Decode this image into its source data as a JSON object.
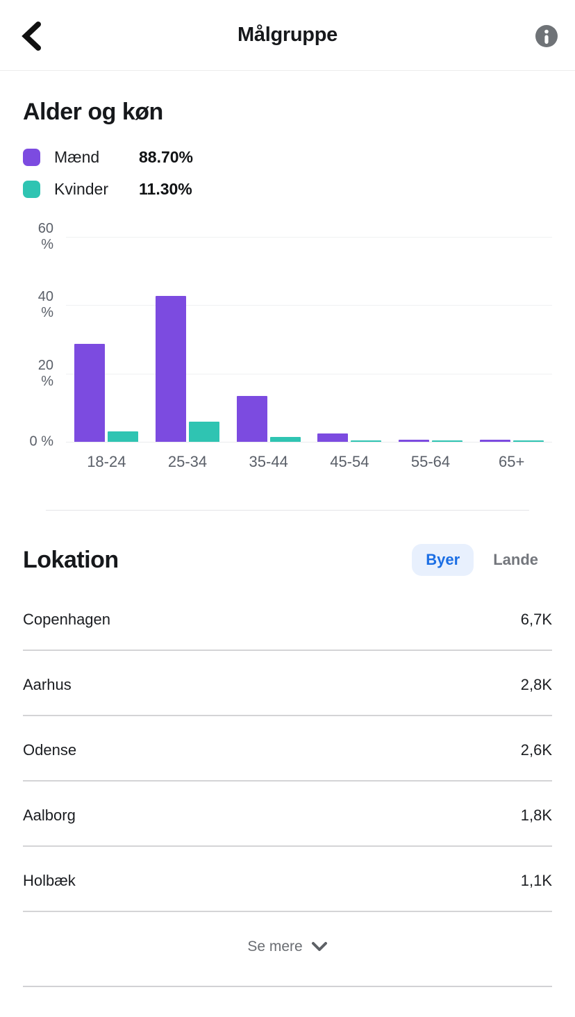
{
  "header": {
    "title": "Målgruppe",
    "back_icon": "chevron-left",
    "info_icon": "info-circle"
  },
  "age_gender": {
    "title": "Alder og køn",
    "legend": [
      {
        "label": "Mænd",
        "value": "88.70%",
        "color": "#7c4be0"
      },
      {
        "label": "Kvinder",
        "value": "11.30%",
        "color": "#2fc4b2"
      }
    ]
  },
  "chart_data": {
    "type": "bar",
    "title": "Alder og køn",
    "categories": [
      "18-24",
      "25-34",
      "35-44",
      "45-54",
      "55-64",
      "65+"
    ],
    "series": [
      {
        "name": "Mænd",
        "color": "#7c4be0",
        "values": [
          28.6,
          42.8,
          13.5,
          2.4,
          0.7,
          0.7
        ]
      },
      {
        "name": "Kvinder",
        "color": "#2fc4b2",
        "values": [
          3.0,
          5.9,
          1.5,
          0.3,
          0.3,
          0.3
        ]
      }
    ],
    "ylabel": "%",
    "ylim": [
      0,
      60
    ],
    "yticks": [
      60,
      40,
      20,
      0
    ],
    "ytick_labels": [
      "60 %",
      "40 %",
      "20 %",
      "0 %"
    ],
    "grid": true,
    "legend_position": "top-left"
  },
  "location": {
    "title": "Lokation",
    "toggle": {
      "selected": "Byer",
      "options": [
        "Byer",
        "Lande"
      ]
    },
    "rows": [
      {
        "name": "Copenhagen",
        "value": "6,7K"
      },
      {
        "name": "Aarhus",
        "value": "2,8K"
      },
      {
        "name": "Odense",
        "value": "2,6K"
      },
      {
        "name": "Aalborg",
        "value": "1,8K"
      },
      {
        "name": "Holbæk",
        "value": "1,1K"
      }
    ],
    "see_more": "Se mere"
  },
  "colors": {
    "male": "#7c4be0",
    "female": "#2fc4b2",
    "accent_blue": "#1b6ee4",
    "pill_bg": "#e8f0fd",
    "gridline": "#f0f1f2",
    "axis_text": "#5a5f68"
  }
}
